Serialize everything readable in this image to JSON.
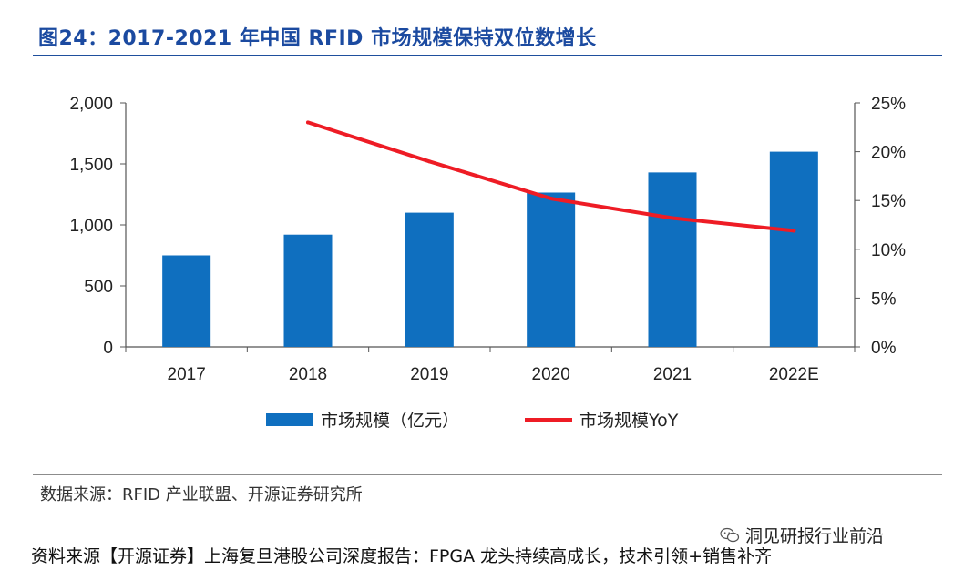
{
  "header": {
    "title": "图24：2017-2021 年中国 RFID 市场规模保持双位数增长"
  },
  "chart_data": {
    "type": "bar",
    "categories": [
      "2017",
      "2018",
      "2019",
      "2020",
      "2021",
      "2022E"
    ],
    "series": [
      {
        "name": "市场规模（亿元）",
        "type": "bar",
        "axis": "left",
        "color": "#0f6fbf",
        "values": [
          750,
          920,
          1100,
          1265,
          1430,
          1600
        ]
      },
      {
        "name": "市场规模YoY",
        "type": "line",
        "axis": "right",
        "color": "#ee1c25",
        "values": [
          null,
          0.23,
          0.19,
          0.152,
          0.132,
          0.119
        ]
      }
    ],
    "y_left": {
      "min": 0,
      "max": 2000,
      "ticks": [
        0,
        500,
        1000,
        1500,
        2000
      ],
      "tick_labels": [
        "0",
        "500",
        "1,000",
        "1,500",
        "2,000"
      ]
    },
    "y_right": {
      "min": 0,
      "max": 0.25,
      "ticks": [
        0,
        0.05,
        0.1,
        0.15,
        0.2,
        0.25
      ],
      "tick_labels": [
        "0%",
        "5%",
        "10%",
        "15%",
        "20%",
        "25%"
      ]
    },
    "grid": false,
    "legend_position": "bottom"
  },
  "source": {
    "text": "数据来源：RFID 产业联盟、开源证券研究所"
  },
  "footer": {
    "text": "资料来源【开源证券】上海复旦港股公司深度报告：FPGA 龙头持续高成长，技术引领+销售补齐",
    "wechat_label": "洞见研报行业前沿",
    "wechat_icon": "wechat-icon"
  }
}
